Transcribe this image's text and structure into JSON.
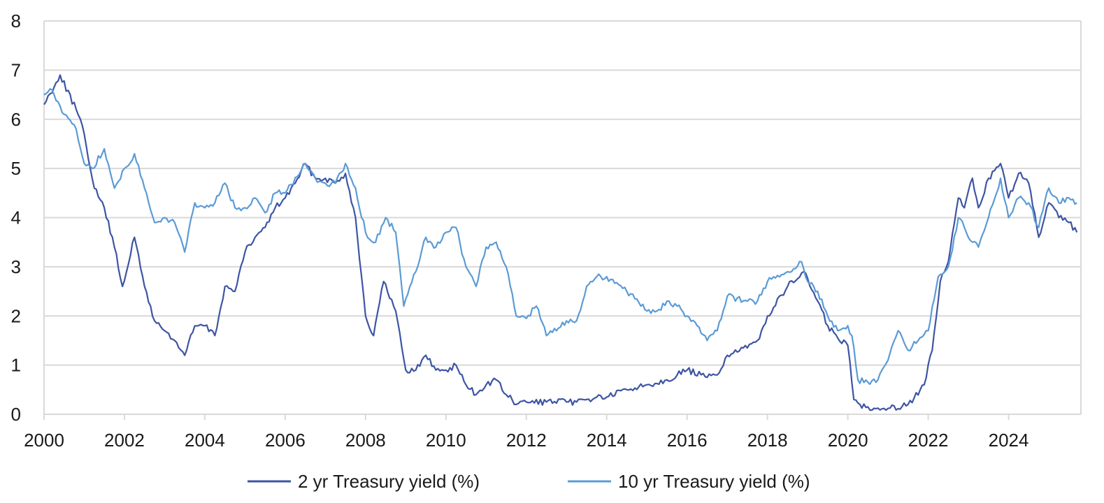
{
  "chart_data": {
    "type": "line",
    "title": "",
    "xlabel": "",
    "ylabel": "",
    "xlim": [
      2000,
      2025.8
    ],
    "ylim": [
      0,
      8
    ],
    "x_ticks": [
      "2000",
      "2002",
      "2004",
      "2006",
      "2008",
      "2010",
      "2012",
      "2014",
      "2016",
      "2018",
      "2020",
      "2022",
      "2024"
    ],
    "y_ticks": [
      "0",
      "1",
      "2",
      "3",
      "4",
      "5",
      "6",
      "7",
      "8"
    ],
    "grid": true,
    "legend_position": "bottom",
    "series": [
      {
        "name": "2 yr Treasury yield (%)",
        "color": "#3d55a3",
        "x": [
          2000.0,
          2000.4,
          2000.8,
          2001.0,
          2001.25,
          2001.5,
          2001.75,
          2001.95,
          2002.25,
          2002.5,
          2002.75,
          2003.0,
          2003.25,
          2003.5,
          2003.75,
          2004.0,
          2004.25,
          2004.5,
          2004.75,
          2005.0,
          2005.25,
          2005.5,
          2005.75,
          2006.0,
          2006.25,
          2006.5,
          2006.75,
          2007.0,
          2007.25,
          2007.5,
          2007.75,
          2008.0,
          2008.2,
          2008.45,
          2008.75,
          2009.0,
          2009.25,
          2009.5,
          2009.75,
          2010.0,
          2010.25,
          2010.5,
          2010.75,
          2011.0,
          2011.25,
          2011.5,
          2011.75,
          2012.0,
          2012.5,
          2013.0,
          2013.25,
          2013.5,
          2013.75,
          2014.0,
          2014.5,
          2015.0,
          2015.5,
          2016.0,
          2016.5,
          2016.75,
          2017.0,
          2017.5,
          2017.75,
          2018.0,
          2018.5,
          2018.9,
          2019.25,
          2019.5,
          2019.75,
          2020.0,
          2020.15,
          2020.3,
          2020.5,
          2021.0,
          2021.5,
          2021.9,
          2022.1,
          2022.3,
          2022.5,
          2022.75,
          2022.9,
          2023.1,
          2023.25,
          2023.5,
          2023.8,
          2024.0,
          2024.25,
          2024.5,
          2024.75,
          2025.0,
          2025.25,
          2025.5,
          2025.7
        ],
        "y": [
          6.3,
          6.9,
          6.2,
          5.7,
          4.6,
          4.2,
          3.4,
          2.6,
          3.6,
          2.6,
          1.9,
          1.7,
          1.5,
          1.2,
          1.8,
          1.8,
          1.6,
          2.6,
          2.5,
          3.3,
          3.6,
          3.8,
          4.2,
          4.4,
          4.7,
          5.1,
          4.8,
          4.8,
          4.7,
          4.9,
          4.0,
          2.0,
          1.6,
          2.7,
          2.1,
          0.9,
          0.9,
          1.2,
          0.9,
          0.9,
          1.0,
          0.6,
          0.4,
          0.6,
          0.7,
          0.4,
          0.2,
          0.25,
          0.25,
          0.25,
          0.25,
          0.3,
          0.35,
          0.35,
          0.5,
          0.6,
          0.7,
          0.9,
          0.75,
          0.8,
          1.2,
          1.35,
          1.5,
          2.0,
          2.6,
          2.9,
          2.3,
          1.8,
          1.55,
          1.4,
          0.3,
          0.2,
          0.15,
          0.12,
          0.2,
          0.6,
          1.3,
          2.7,
          3.1,
          4.4,
          4.2,
          4.8,
          4.2,
          4.8,
          5.1,
          4.4,
          4.9,
          4.7,
          3.6,
          4.3,
          4.0,
          3.9,
          3.7
        ]
      },
      {
        "name": "10 yr Treasury yield (%)",
        "color": "#5b9bd5",
        "x": [
          2000.0,
          2000.2,
          2000.5,
          2000.8,
          2001.0,
          2001.2,
          2001.5,
          2001.75,
          2002.0,
          2002.25,
          2002.5,
          2002.75,
          2003.0,
          2003.25,
          2003.5,
          2003.75,
          2004.0,
          2004.25,
          2004.5,
          2004.75,
          2005.0,
          2005.25,
          2005.5,
          2005.75,
          2006.0,
          2006.5,
          2006.75,
          2007.0,
          2007.25,
          2007.5,
          2007.75,
          2008.0,
          2008.25,
          2008.5,
          2008.75,
          2008.95,
          2009.25,
          2009.5,
          2009.75,
          2010.0,
          2010.25,
          2010.5,
          2010.75,
          2011.0,
          2011.25,
          2011.5,
          2011.75,
          2012.0,
          2012.25,
          2012.5,
          2012.75,
          2013.0,
          2013.25,
          2013.5,
          2013.75,
          2014.0,
          2014.5,
          2015.0,
          2015.25,
          2015.5,
          2015.75,
          2016.0,
          2016.25,
          2016.5,
          2016.75,
          2017.0,
          2017.5,
          2017.75,
          2018.0,
          2018.5,
          2018.85,
          2019.0,
          2019.25,
          2019.5,
          2019.75,
          2020.0,
          2020.1,
          2020.25,
          2020.5,
          2020.75,
          2021.0,
          2021.25,
          2021.5,
          2021.75,
          2022.0,
          2022.25,
          2022.5,
          2022.75,
          2022.9,
          2023.1,
          2023.25,
          2023.5,
          2023.8,
          2024.0,
          2024.25,
          2024.5,
          2024.75,
          2025.0,
          2025.25,
          2025.5,
          2025.7
        ],
        "y": [
          6.5,
          6.6,
          6.1,
          5.8,
          5.1,
          5.0,
          5.4,
          4.6,
          5.0,
          5.3,
          4.6,
          3.9,
          4.0,
          3.9,
          3.3,
          4.3,
          4.2,
          4.3,
          4.7,
          4.2,
          4.2,
          4.4,
          4.1,
          4.5,
          4.5,
          5.1,
          4.8,
          4.7,
          4.7,
          5.1,
          4.6,
          3.7,
          3.5,
          4.0,
          3.7,
          2.2,
          2.9,
          3.6,
          3.4,
          3.7,
          3.8,
          3.0,
          2.6,
          3.4,
          3.5,
          3.0,
          2.0,
          1.95,
          2.2,
          1.6,
          1.7,
          1.9,
          1.9,
          2.6,
          2.8,
          2.8,
          2.5,
          2.1,
          2.1,
          2.3,
          2.2,
          2.0,
          1.8,
          1.5,
          1.7,
          2.4,
          2.3,
          2.3,
          2.7,
          2.9,
          3.1,
          2.7,
          2.5,
          2.0,
          1.7,
          1.8,
          1.6,
          0.7,
          0.65,
          0.7,
          1.1,
          1.7,
          1.3,
          1.5,
          1.7,
          2.8,
          3.0,
          4.0,
          3.8,
          3.5,
          3.4,
          4.0,
          4.8,
          4.0,
          4.4,
          4.3,
          3.8,
          4.6,
          4.3,
          4.4,
          4.3
        ]
      }
    ]
  }
}
